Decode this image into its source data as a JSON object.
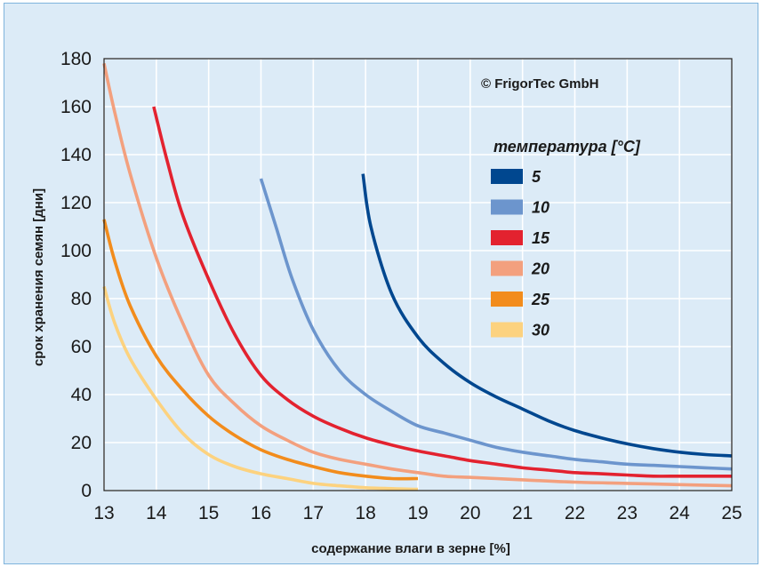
{
  "chart_data": {
    "type": "line",
    "title": "",
    "copyright": "© FrigorTec GmbH",
    "xlabel": "содержание влаги в зерне [%]",
    "ylabel": "срок хранения семян [дни]",
    "xlim": [
      13,
      25
    ],
    "ylim": [
      0,
      180
    ],
    "xticks": [
      "13",
      "14",
      "15",
      "16",
      "17",
      "18",
      "19",
      "20",
      "21",
      "22",
      "23",
      "24",
      "25"
    ],
    "yticks": [
      "0",
      "20",
      "40",
      "60",
      "80",
      "100",
      "120",
      "140",
      "160",
      "180"
    ],
    "grid": true,
    "legend_title": "температура [°C]",
    "legend_position": "top-right",
    "series": [
      {
        "name": "5",
        "color": "#00478f",
        "points": [
          [
            17.95,
            132
          ],
          [
            18.1,
            110
          ],
          [
            18.5,
            82
          ],
          [
            19,
            64
          ],
          [
            19.5,
            53
          ],
          [
            20,
            45
          ],
          [
            20.5,
            39
          ],
          [
            21,
            34
          ],
          [
            21.5,
            29
          ],
          [
            22,
            25
          ],
          [
            22.5,
            22
          ],
          [
            23,
            19.5
          ],
          [
            23.5,
            17.5
          ],
          [
            24,
            16
          ],
          [
            24.5,
            15
          ],
          [
            25,
            14.5
          ]
        ]
      },
      {
        "name": "10",
        "color": "#6c95cd",
        "points": [
          [
            16,
            130
          ],
          [
            16.3,
            109
          ],
          [
            16.6,
            88
          ],
          [
            17,
            67
          ],
          [
            17.5,
            50
          ],
          [
            18,
            40
          ],
          [
            18.5,
            33
          ],
          [
            19,
            27
          ],
          [
            19.5,
            24
          ],
          [
            20,
            21
          ],
          [
            20.5,
            18
          ],
          [
            21,
            16
          ],
          [
            21.5,
            14.5
          ],
          [
            22,
            13
          ],
          [
            22.5,
            12
          ],
          [
            23,
            11
          ],
          [
            23.5,
            10.5
          ],
          [
            24,
            10
          ],
          [
            24.5,
            9.5
          ],
          [
            25,
            9
          ]
        ]
      },
      {
        "name": "15",
        "color": "#e3222f",
        "points": [
          [
            13.95,
            160
          ],
          [
            14.2,
            138
          ],
          [
            14.5,
            115
          ],
          [
            15,
            88
          ],
          [
            15.5,
            65
          ],
          [
            16,
            48
          ],
          [
            16.5,
            38
          ],
          [
            17,
            31
          ],
          [
            17.5,
            26
          ],
          [
            18,
            22
          ],
          [
            18.5,
            19
          ],
          [
            19,
            16.5
          ],
          [
            19.5,
            14.5
          ],
          [
            20,
            12.5
          ],
          [
            20.5,
            11
          ],
          [
            21,
            9.5
          ],
          [
            21.5,
            8.5
          ],
          [
            22,
            7.5
          ],
          [
            22.5,
            7
          ],
          [
            23,
            6.5
          ],
          [
            23.5,
            6
          ],
          [
            24,
            6
          ],
          [
            24.5,
            6
          ],
          [
            25,
            6
          ]
        ]
      },
      {
        "name": "20",
        "color": "#f3a07e",
        "points": [
          [
            13,
            178
          ],
          [
            13.2,
            158
          ],
          [
            13.5,
            132
          ],
          [
            14,
            97
          ],
          [
            14.5,
            70
          ],
          [
            15,
            48
          ],
          [
            15.5,
            36
          ],
          [
            16,
            27
          ],
          [
            16.5,
            21
          ],
          [
            17,
            16
          ],
          [
            17.5,
            13
          ],
          [
            18,
            11
          ],
          [
            18.5,
            9
          ],
          [
            19,
            7.5
          ],
          [
            19.5,
            6
          ],
          [
            20,
            5.5
          ],
          [
            20.5,
            5
          ],
          [
            21,
            4.5
          ],
          [
            22,
            3.5
          ],
          [
            23,
            3
          ],
          [
            24,
            2.5
          ],
          [
            25,
            2
          ]
        ]
      },
      {
        "name": "25",
        "color": "#f28c1c",
        "points": [
          [
            13,
            113
          ],
          [
            13.2,
            96
          ],
          [
            13.5,
            77
          ],
          [
            14,
            56
          ],
          [
            14.5,
            42
          ],
          [
            15,
            31
          ],
          [
            15.5,
            23
          ],
          [
            16,
            17
          ],
          [
            16.5,
            13
          ],
          [
            17,
            10
          ],
          [
            17.5,
            7.5
          ],
          [
            18,
            6
          ],
          [
            18.5,
            5
          ],
          [
            19,
            5
          ]
        ]
      },
      {
        "name": "30",
        "color": "#fcd27f",
        "points": [
          [
            13,
            85
          ],
          [
            13.2,
            70
          ],
          [
            13.5,
            55
          ],
          [
            14,
            38
          ],
          [
            14.5,
            24
          ],
          [
            15,
            15
          ],
          [
            15.5,
            10
          ],
          [
            16,
            7
          ],
          [
            16.5,
            5
          ],
          [
            17,
            3
          ],
          [
            17.5,
            2
          ],
          [
            18,
            1.2
          ],
          [
            18.5,
            0.8
          ],
          [
            19,
            0.5
          ]
        ]
      }
    ]
  }
}
